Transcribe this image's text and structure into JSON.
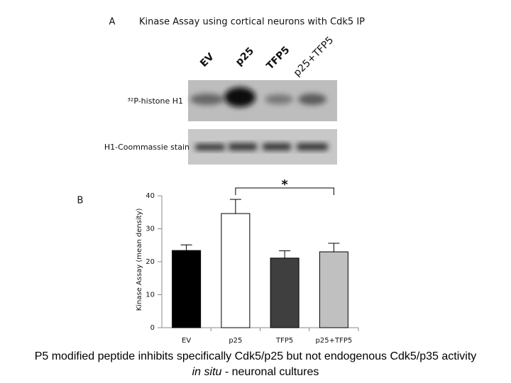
{
  "panel_a": {
    "label": "A",
    "title": "Kinase Assay using cortical neurons with Cdk5 IP",
    "lanes": [
      "EV",
      "p25",
      "TFP5",
      "p25+TFP5"
    ],
    "blots": [
      "³²P-histone H1",
      "H1-Coommassie stain"
    ]
  },
  "chart_data": {
    "type": "bar",
    "panel_label": "B",
    "ylabel": "Kinase Assay (mean density)",
    "categories": [
      "EV",
      "p25",
      "TFP5",
      "p25+TFP5"
    ],
    "values": [
      23.4,
      34.6,
      21.1,
      23
    ],
    "errors": [
      1.7,
      4.3,
      2.2,
      2.6
    ],
    "colors": [
      "#000000",
      "#ffffff",
      "#3f3f3f",
      "#c0c0c0"
    ],
    "ylim": [
      0,
      40
    ],
    "yticks": [
      0,
      10,
      20,
      30,
      40
    ],
    "annotation": "*"
  },
  "caption": [
    "P5 modified peptide inhibits specifically Cdk5/p25 but not endogenous Cdk5/p35 activity",
    "in situ",
    "- neuronal cultures"
  ]
}
